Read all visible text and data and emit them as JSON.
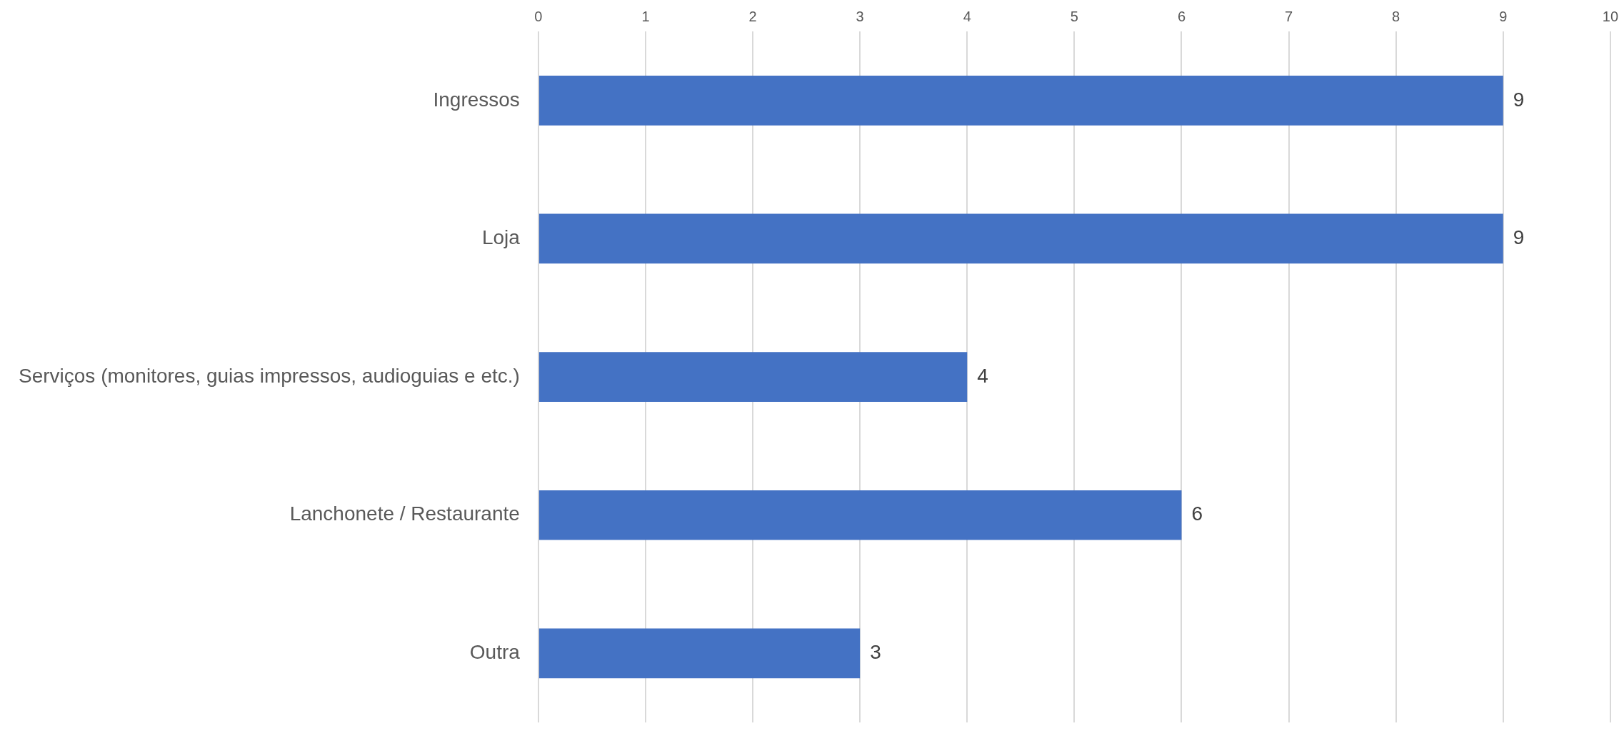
{
  "chart_data": {
    "type": "bar",
    "orientation": "horizontal",
    "categories": [
      "Ingressos",
      "Loja",
      "Serviços (monitores, guias impressos, audioguias e etc.)",
      "Lanchonete / Restaurante",
      "Outra"
    ],
    "values": [
      9,
      9,
      4,
      6,
      3
    ],
    "color": "#4472c4",
    "xlim": [
      0,
      10
    ],
    "xticks": [
      0,
      1,
      2,
      3,
      4,
      5,
      6,
      7,
      8,
      9,
      10
    ],
    "grid": "x",
    "data_labels": true,
    "legend": false
  }
}
